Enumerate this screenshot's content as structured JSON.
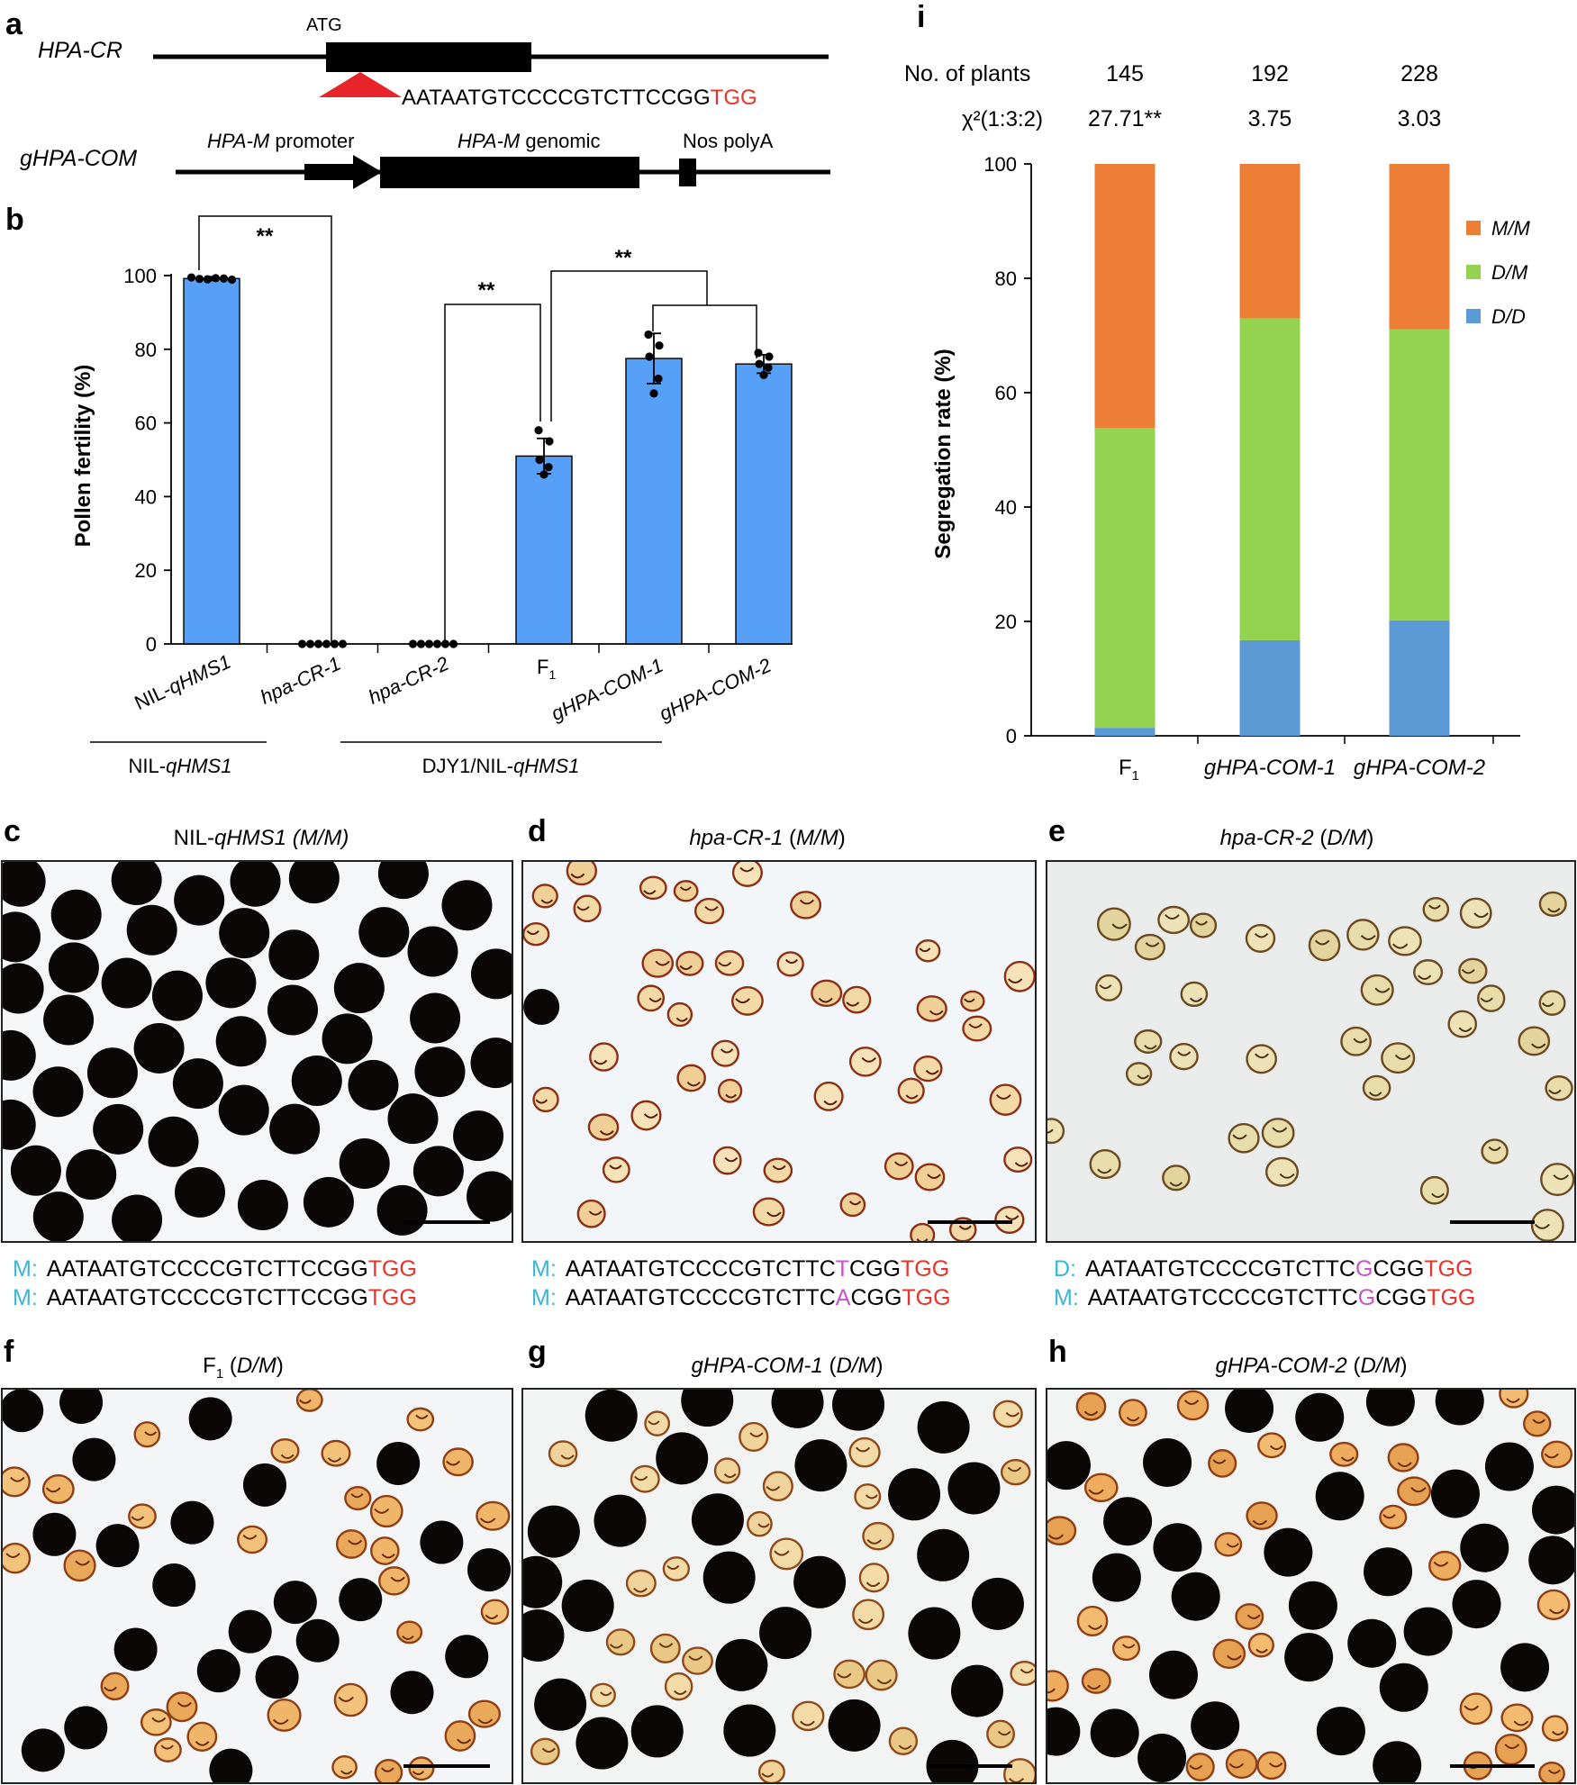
{
  "panels": {
    "a": "a",
    "b": "b",
    "c": "c",
    "d": "d",
    "e": "e",
    "f": "f",
    "g": "g",
    "h": "h",
    "i": "i"
  },
  "panel_a": {
    "cr_name": "HPA-CR",
    "atg": "ATG",
    "seq_black": "AATAATGTCCCCGTCTTCCGG",
    "seq_red": "TGG",
    "com_name": "gHPA-COM",
    "promoter_it": "HPA-M",
    "promoter_txt": " promoter",
    "genomic_it": "HPA-M",
    "genomic_txt": " genomic",
    "polya": "Nos polyA"
  },
  "panel_b": {
    "ylabel": "Pollen fertility (%)",
    "group1_label_pre": "NIL-",
    "group1_label_it": "qHMS1",
    "group2_label_pre": "DJY1/NIL-",
    "group2_label_it": "qHMS1",
    "sig1": "**",
    "sig2": "**",
    "sig3": "**",
    "f1_base": "F",
    "f1_sub": "1"
  },
  "panel_i": {
    "plants_label": "No. of  plants",
    "plants": [
      "145",
      "192",
      "228"
    ],
    "chi_label": "χ²(1:3:2)",
    "chi": [
      "27.71**",
      "3.75",
      "3.03"
    ],
    "ylabel": "Segregation rate (%)"
  },
  "micrographs": {
    "c_title_pre": "NIL-",
    "c_title_it": "qHMS1 (M/M)",
    "d_title_it": "hpa-CR-1",
    "d_title_geno": "M/M",
    "e_title_it": "hpa-CR-2",
    "e_title_geno": "D/M",
    "f_title_base": "F",
    "f_title_sub": "1",
    "f_title_geno": "D/M",
    "g_title_it": "gHPA-COM-1",
    "g_title_geno": "D/M",
    "h_title_it": "gHPA-COM-2",
    "h_title_geno": "D/M"
  },
  "sequences": {
    "c1": {
      "tag": "M:",
      "pre": "AATAATGTCCCCGTCTTCCGG",
      "mut": "",
      "post": "",
      "pam": "TGG"
    },
    "c2": {
      "tag": "M:",
      "pre": "AATAATGTCCCCGTCTTCCGG",
      "mut": "",
      "post": "",
      "pam": "TGG"
    },
    "d1": {
      "tag": "M:",
      "pre": "AATAATGTCCCCGTCTTC",
      "mut": "T",
      "post": "CGG",
      "pam": "TGG"
    },
    "d2": {
      "tag": "M:",
      "pre": "AATAATGTCCCCGTCTTC",
      "mut": "A",
      "post": "CGG",
      "pam": "TGG"
    },
    "e1": {
      "tag": "D:",
      "pre": "AATAATGTCCCCGTCTTC",
      "mut": "G",
      "post": "CGG",
      "pam": "TGG"
    },
    "e2": {
      "tag": "M:",
      "pre": "AATAATGTCCCCGTCTTC",
      "mut": "G",
      "post": "CGG",
      "pam": "TGG"
    }
  },
  "colors": {
    "bar_blue": "#57a0f7",
    "mm_orange": "#ec7f35",
    "dm_green": "#93d350",
    "dd_blue": "#5b9ad5",
    "pam_red": "#e8332a",
    "tag_cyan": "#3ab7d8",
    "mut_magenta": "#c455c7"
  },
  "chart_data": [
    {
      "type": "bar",
      "panel": "b",
      "title": "",
      "xlabel": "",
      "ylabel": "Pollen fertility (%)",
      "ylim": [
        0,
        100
      ],
      "yticks": [
        0,
        20,
        40,
        60,
        80,
        100
      ],
      "categories": [
        "NIL-qHMS1",
        "hpa-CR-1",
        "hpa-CR-2",
        "F1",
        "gHPA-COM-1",
        "gHPA-COM-2"
      ],
      "values": [
        99.2,
        0,
        0,
        51,
        77.5,
        76
      ],
      "errors": [
        0.5,
        0,
        0,
        4.8,
        6.8,
        2.5
      ],
      "points": [
        [
          99.5,
          99.1,
          99.0,
          99.3,
          99.2,
          98.9
        ],
        [
          0,
          0,
          0,
          0,
          0,
          0
        ],
        [
          0,
          0,
          0,
          0,
          0,
          0
        ],
        [
          58,
          55,
          50,
          48,
          46
        ],
        [
          84,
          81,
          78,
          72,
          68
        ],
        [
          79,
          78,
          76,
          75,
          73
        ]
      ]
    },
    {
      "type": "bar",
      "stacked": true,
      "panel": "i",
      "title": "",
      "xlabel": "",
      "ylabel": "Segregation rate (%)",
      "ylim": [
        0,
        100
      ],
      "yticks": [
        0,
        20,
        40,
        60,
        80,
        100
      ],
      "categories": [
        "F1",
        "gHPA-COM-1",
        "gHPA-COM-2"
      ],
      "legend_position": "right",
      "series": [
        {
          "name": "D/D",
          "color": "#5b9ad5",
          "values": [
            1.4,
            16.7,
            20.2
          ]
        },
        {
          "name": "D/M",
          "color": "#93d350",
          "values": [
            52.4,
            56.3,
            50.9
          ]
        },
        {
          "name": "M/M",
          "color": "#ec7f35",
          "values": [
            46.2,
            27.0,
            28.9
          ]
        }
      ]
    }
  ]
}
